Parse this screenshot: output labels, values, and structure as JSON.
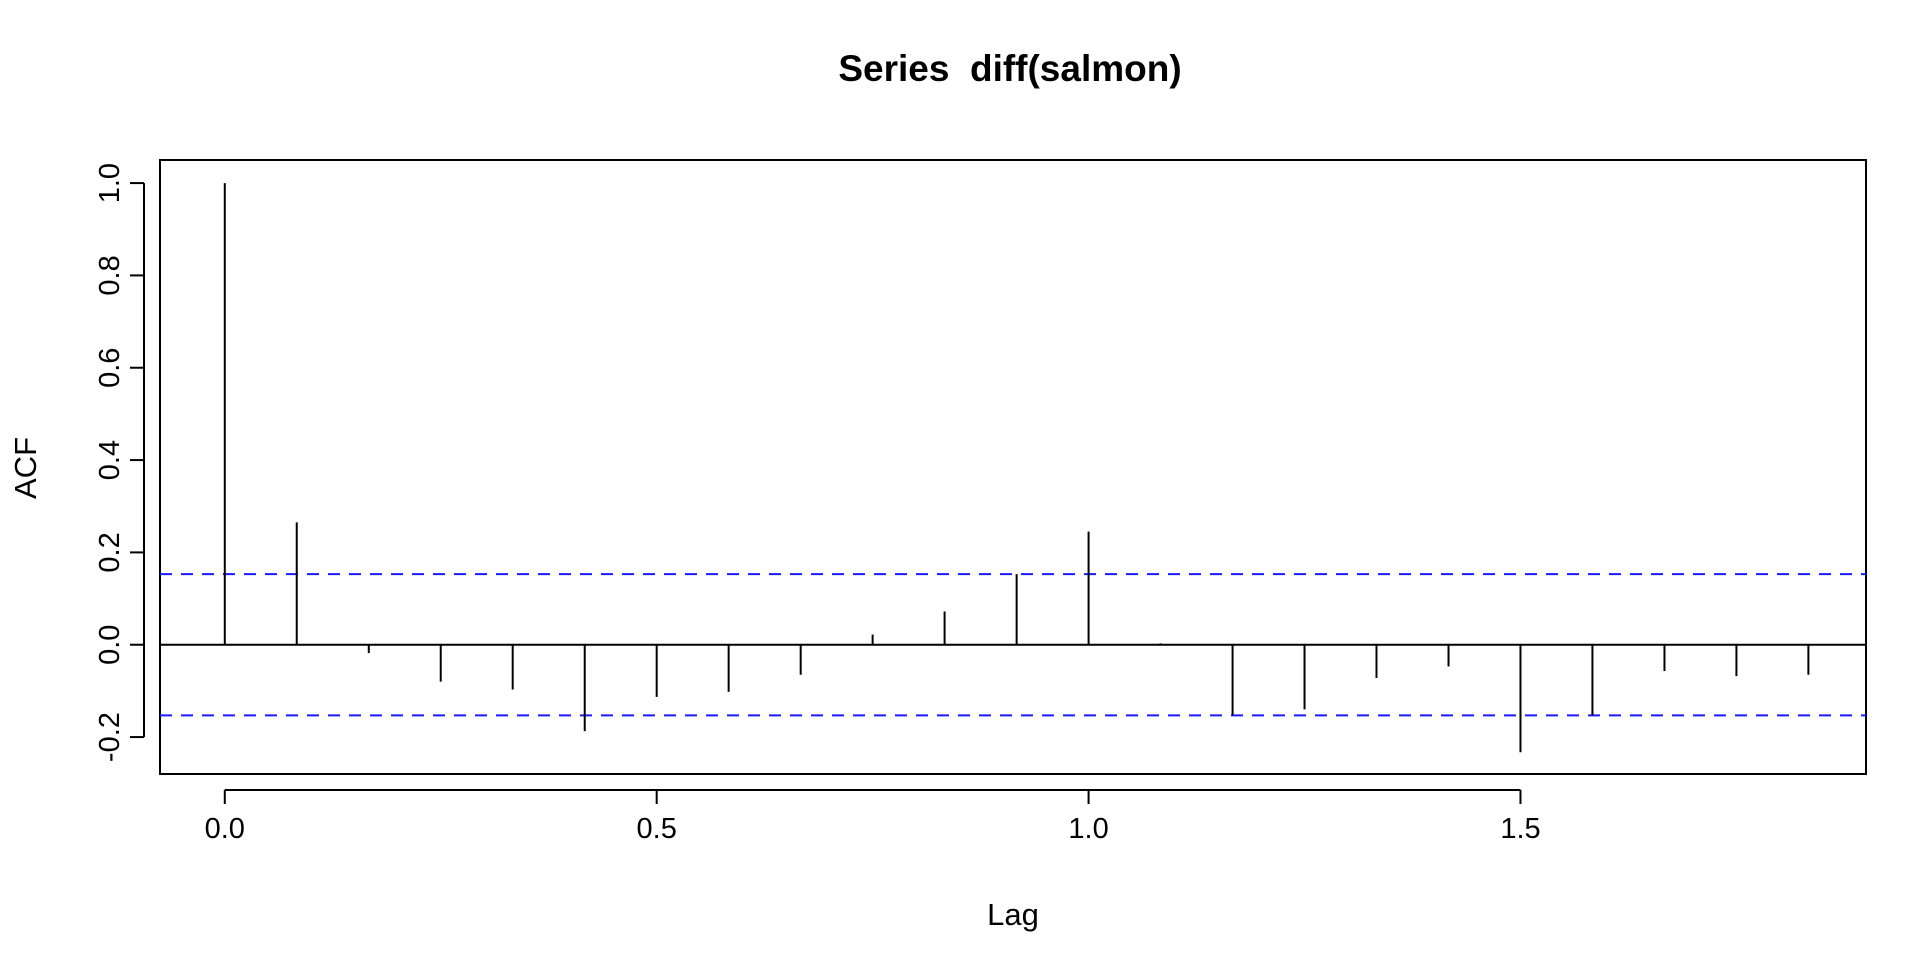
{
  "chart_data": {
    "type": "bar",
    "subtype": "acf",
    "title": "Series  diff(salmon)",
    "xlabel": "Lag",
    "ylabel": "ACF",
    "xlim": [
      -0.075,
      1.9
    ],
    "ylim": [
      -0.28,
      1.05
    ],
    "x_ticks": [
      0.0,
      0.5,
      1.0,
      1.5
    ],
    "x_tick_labels": [
      "0.0",
      "0.5",
      "1.0",
      "1.5"
    ],
    "y_ticks": [
      -0.2,
      0.0,
      0.2,
      0.4,
      0.6,
      0.8,
      1.0
    ],
    "y_tick_labels": [
      "-0.2",
      "0.0",
      "0.2",
      "0.4",
      "0.6",
      "0.8",
      "1.0"
    ],
    "lags": [
      0.0,
      0.0833,
      0.1667,
      0.25,
      0.3333,
      0.4167,
      0.5,
      0.5833,
      0.6667,
      0.75,
      0.8333,
      0.9167,
      1.0,
      1.0833,
      1.1667,
      1.25,
      1.3333,
      1.4167,
      1.5,
      1.5833,
      1.6667,
      1.75,
      1.8333
    ],
    "values": [
      1.0,
      0.265,
      -0.018,
      -0.08,
      -0.097,
      -0.187,
      -0.113,
      -0.102,
      -0.065,
      0.022,
      0.072,
      0.153,
      0.245,
      0.003,
      -0.153,
      -0.14,
      -0.072,
      -0.047,
      -0.233,
      -0.153,
      -0.057,
      -0.068,
      -0.065
    ],
    "confidence_bound": 0.153,
    "grid": false,
    "colors": {
      "spikes": "#000000",
      "confidence": "#1a1aff",
      "zero_line": "#000000"
    }
  }
}
